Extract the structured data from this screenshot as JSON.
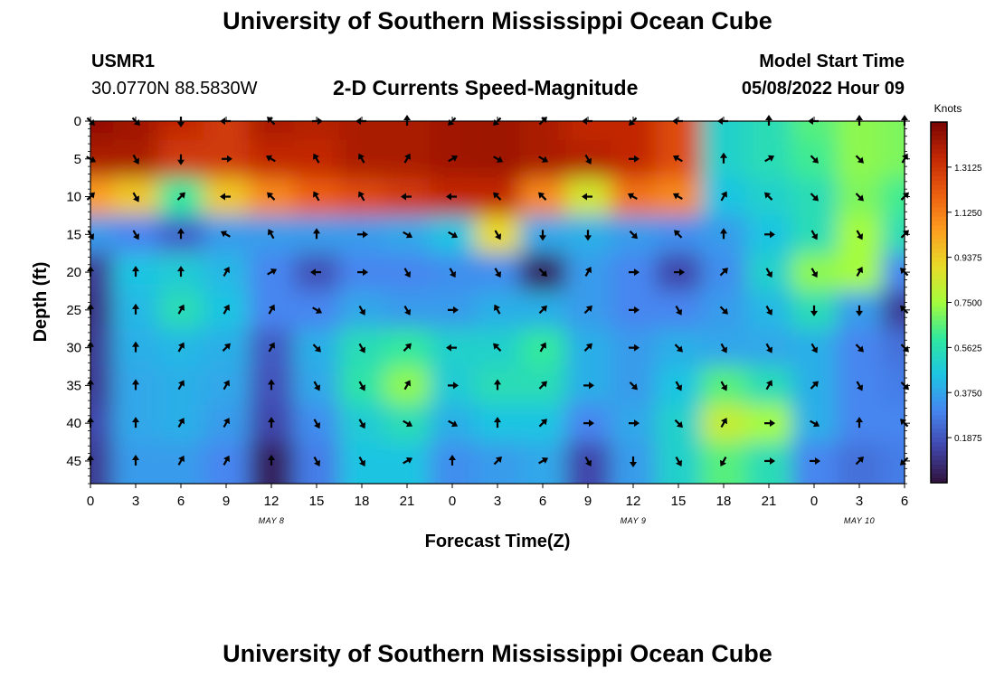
{
  "header": {
    "title": "University of Southern Mississippi Ocean Cube",
    "station_id": "USMR1",
    "station_coords": "30.0770N  88.5830W",
    "chart_subtitle": "2-D Currents Speed-Magnitude",
    "model_start_label": "Model Start Time",
    "model_start_value": "05/08/2022 Hour 09"
  },
  "footer": {
    "next_title": "University of Southern Mississippi Ocean Cube"
  },
  "chart_data": {
    "type": "heatmap",
    "title": "2-D Currents Speed-Magnitude",
    "xlabel": "Forecast Time(Z)",
    "ylabel": "Depth (ft)",
    "x_ticks": [
      "0",
      "3",
      "6",
      "9",
      "12",
      "15",
      "18",
      "21",
      "0",
      "3",
      "6",
      "9",
      "12",
      "15",
      "18",
      "21",
      "0",
      "3",
      "6"
    ],
    "date_labels": [
      {
        "text": "MAY 8",
        "tick_index": 4
      },
      {
        "text": "MAY 9",
        "tick_index": 12
      },
      {
        "text": "MAY 10",
        "tick_index": 17
      }
    ],
    "y_ticks": [
      0,
      5,
      10,
      15,
      20,
      25,
      30,
      35,
      40,
      45
    ],
    "ylim": [
      0,
      48
    ],
    "colorbar": {
      "unit": "Knots",
      "ticks": [
        "1.3125",
        "1.1250",
        "0.9375",
        "0.7500",
        "0.5625",
        "0.3750",
        "0.1875"
      ],
      "range": [
        0,
        1.5
      ]
    },
    "speed_grid_knots": [
      [
        1.45,
        1.42,
        1.35,
        1.3,
        1.4,
        1.38,
        1.4,
        1.4,
        1.42,
        1.43,
        1.4,
        1.35,
        1.35,
        1.25,
        0.5,
        0.55,
        0.65,
        0.72,
        0.7
      ],
      [
        1.4,
        1.4,
        1.3,
        1.3,
        1.35,
        1.35,
        1.4,
        1.4,
        1.42,
        1.43,
        1.4,
        1.38,
        1.35,
        1.25,
        0.5,
        0.55,
        0.62,
        0.72,
        0.7
      ],
      [
        1.05,
        0.95,
        0.6,
        0.95,
        1.1,
        1.2,
        1.25,
        1.3,
        1.35,
        1.35,
        1.1,
        0.85,
        1.15,
        1.1,
        0.45,
        0.5,
        0.55,
        0.7,
        0.62
      ],
      [
        0.35,
        0.3,
        0.22,
        0.35,
        0.35,
        0.35,
        0.35,
        0.38,
        0.45,
        0.9,
        0.38,
        0.4,
        0.35,
        0.32,
        0.35,
        0.45,
        0.55,
        0.75,
        0.55
      ],
      [
        0.12,
        0.45,
        0.48,
        0.42,
        0.3,
        0.18,
        0.3,
        0.3,
        0.32,
        0.32,
        0.05,
        0.35,
        0.3,
        0.15,
        0.32,
        0.5,
        0.72,
        0.75,
        0.3
      ],
      [
        0.1,
        0.42,
        0.55,
        0.45,
        0.3,
        0.3,
        0.38,
        0.35,
        0.35,
        0.4,
        0.4,
        0.35,
        0.3,
        0.3,
        0.35,
        0.42,
        0.55,
        0.35,
        0.12
      ],
      [
        0.12,
        0.4,
        0.42,
        0.4,
        0.2,
        0.4,
        0.55,
        0.6,
        0.5,
        0.5,
        0.6,
        0.4,
        0.35,
        0.4,
        0.38,
        0.38,
        0.4,
        0.3,
        0.25
      ],
      [
        0.12,
        0.38,
        0.4,
        0.38,
        0.18,
        0.38,
        0.58,
        0.72,
        0.48,
        0.55,
        0.55,
        0.4,
        0.35,
        0.45,
        0.65,
        0.55,
        0.4,
        0.3,
        0.28
      ],
      [
        0.15,
        0.38,
        0.4,
        0.35,
        0.15,
        0.32,
        0.48,
        0.55,
        0.4,
        0.45,
        0.45,
        0.3,
        0.38,
        0.5,
        0.82,
        0.75,
        0.4,
        0.3,
        0.3
      ],
      [
        0.12,
        0.35,
        0.35,
        0.3,
        0.05,
        0.28,
        0.45,
        0.45,
        0.32,
        0.35,
        0.38,
        0.15,
        0.35,
        0.5,
        0.65,
        0.55,
        0.3,
        0.25,
        0.28
      ]
    ],
    "direction_grid_deg": [
      [
        135,
        135,
        180,
        270,
        315,
        90,
        270,
        0,
        225,
        225,
        45,
        270,
        225,
        270,
        270,
        0,
        270,
        0,
        0
      ],
      [
        120,
        150,
        180,
        90,
        300,
        330,
        330,
        30,
        60,
        120,
        120,
        150,
        90,
        300,
        0,
        60,
        135,
        135,
        30
      ],
      [
        45,
        150,
        45,
        270,
        315,
        330,
        330,
        270,
        270,
        315,
        315,
        270,
        300,
        300,
        30,
        315,
        135,
        135,
        45
      ],
      [
        150,
        150,
        0,
        300,
        330,
        0,
        90,
        120,
        120,
        150,
        180,
        180,
        135,
        315,
        0,
        90,
        150,
        150,
        45
      ],
      [
        0,
        0,
        0,
        30,
        60,
        270,
        90,
        150,
        150,
        150,
        135,
        30,
        90,
        90,
        45,
        150,
        150,
        30,
        315
      ],
      [
        0,
        0,
        30,
        30,
        30,
        120,
        150,
        150,
        90,
        330,
        45,
        45,
        90,
        150,
        135,
        150,
        180,
        180,
        315
      ],
      [
        0,
        0,
        30,
        45,
        30,
        135,
        150,
        45,
        270,
        315,
        30,
        45,
        90,
        135,
        150,
        150,
        150,
        135,
        135
      ],
      [
        0,
        0,
        30,
        30,
        0,
        150,
        150,
        30,
        90,
        0,
        45,
        90,
        135,
        150,
        150,
        30,
        45,
        150,
        135
      ],
      [
        0,
        0,
        30,
        30,
        0,
        150,
        150,
        120,
        120,
        0,
        45,
        90,
        90,
        135,
        30,
        90,
        120,
        0,
        315
      ],
      [
        0,
        0,
        30,
        30,
        0,
        150,
        150,
        60,
        0,
        45,
        60,
        150,
        180,
        150,
        210,
        90,
        90,
        45,
        225
      ]
    ]
  }
}
